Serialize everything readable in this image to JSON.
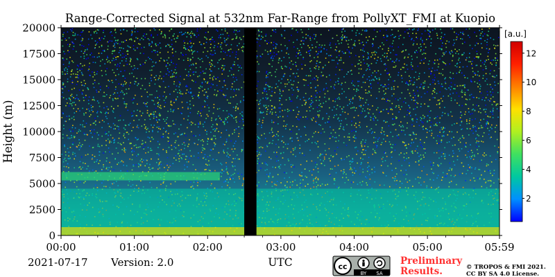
{
  "chart_data": {
    "type": "heatmap",
    "title": "Range-Corrected Signal at 532nm Far-Range from PollyXT_FMI at Kuopio",
    "xlabel": "UTC",
    "ylabel": "Height (m)",
    "xlim": [
      "00:00",
      "05:59"
    ],
    "ylim": [
      0,
      20000
    ],
    "x_ticks": [
      "00:00",
      "01:00",
      "02:00",
      "03:00",
      "04:00",
      "05:00",
      "05:59"
    ],
    "y_ticks": [
      0,
      2500,
      5000,
      7500,
      10000,
      12500,
      15000,
      17500,
      20000
    ],
    "colorbar": {
      "unit": "[a.u.]",
      "ticks": [
        2,
        4,
        6,
        8,
        10,
        12
      ],
      "range": [
        0.4,
        12.8
      ],
      "colormap": [
        "#0000ff",
        "#0090ff",
        "#00c8a0",
        "#40e060",
        "#b0f020",
        "#ffe000",
        "#ff8000",
        "#ff2000",
        "#d00000"
      ]
    },
    "data_gap": {
      "start": "02:30",
      "end": "02:40",
      "color": "#000000"
    },
    "features": [
      {
        "label": "near-surface maximum",
        "height_range": [
          0,
          800
        ],
        "level": 7.5
      },
      {
        "label": "boundary layer aerosol",
        "height_range": [
          800,
          4500
        ],
        "level": 3.5
      },
      {
        "label": "elevated layer 00:00-02:10",
        "height_range": [
          5300,
          6100
        ],
        "level": 4.5
      }
    ]
  },
  "footer": {
    "date": "2021-07-17",
    "version": "Version: 2.0",
    "license_badge": "cc-by-sa-icon",
    "preliminary_line1": "Preliminary",
    "preliminary_line2": "Results.",
    "copyright_line1": "© TROPOS & FMI 2021.",
    "copyright_line2": "CC BY SA 4.0 License."
  }
}
